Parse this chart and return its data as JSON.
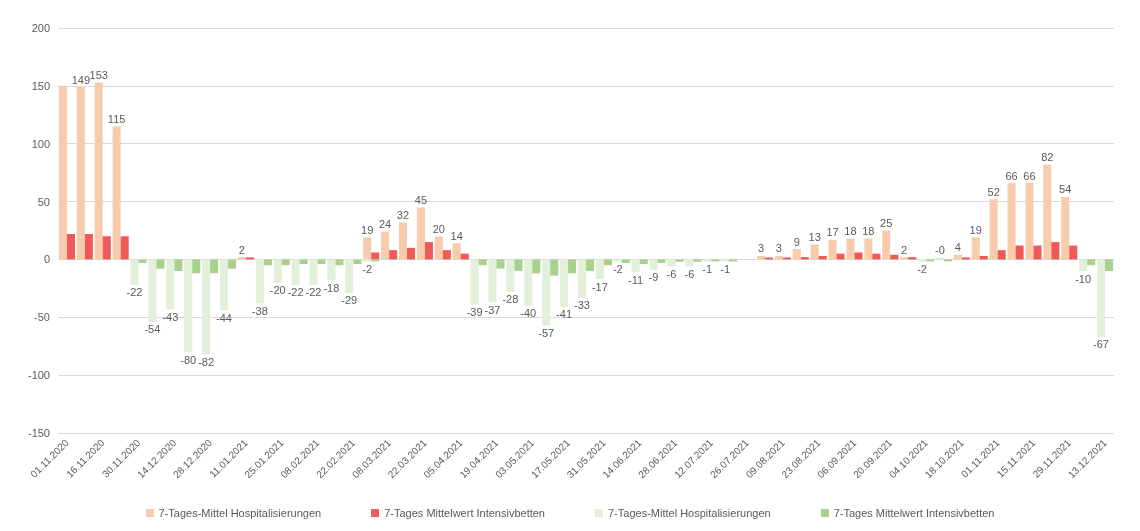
{
  "chart_data": {
    "type": "bar",
    "categories": [
      "01.11.2020",
      null,
      "16.11.2020",
      null,
      "30.11.2020",
      null,
      "14.12.2020",
      null,
      "28.12.2020",
      null,
      "11.01.2021",
      null,
      "25.01.2021",
      null,
      "08.02.2021",
      null,
      "22.02.2021",
      null,
      "08.03.2021",
      null,
      "22.03.2021",
      null,
      "05.04.2021",
      null,
      "19.04.2021",
      null,
      "03.05.2021",
      null,
      "17.05.2021",
      null,
      "31.05.2021",
      null,
      "14.06.2021",
      null,
      "28.06.2021",
      null,
      "12.07.2021",
      null,
      "26.07.2021",
      null,
      "09.08.2021",
      null,
      "23.08.2021",
      null,
      "06.09.2021",
      null,
      "20.09.2021",
      null,
      "04.10.2021",
      null,
      "18.10.2021",
      null,
      "01.11.2021",
      null,
      "15.11.2021",
      null,
      "29.11.2021",
      null,
      "13.12.2021"
    ],
    "series": [
      {
        "name": "7-Tages-Mittel Hospitalisierungen",
        "color": "#f8cbad",
        "values": [
          150,
          149,
          153,
          115,
          null,
          null,
          null,
          null,
          null,
          null,
          2,
          null,
          null,
          null,
          null,
          null,
          null,
          19,
          24,
          32,
          45,
          20,
          14,
          null,
          null,
          null,
          null,
          null,
          null,
          null,
          null,
          null,
          null,
          null,
          null,
          null,
          null,
          null,
          null,
          3,
          3,
          9,
          13,
          17,
          18,
          18,
          25,
          2,
          null,
          null,
          4,
          19,
          52,
          66,
          66,
          82,
          54,
          null,
          null
        ],
        "value_labels": [
          null,
          "149",
          "153",
          "115",
          null,
          null,
          null,
          null,
          null,
          null,
          "2",
          null,
          null,
          null,
          null,
          null,
          null,
          "19",
          "24",
          "32",
          "45",
          "20",
          "14",
          null,
          null,
          null,
          null,
          null,
          null,
          null,
          null,
          null,
          null,
          null,
          null,
          null,
          null,
          null,
          null,
          "3",
          "3",
          "9",
          "13",
          "17",
          "18",
          "18",
          "25",
          "2",
          null,
          null,
          "4",
          "19",
          "52",
          "66",
          "66",
          "82",
          "54",
          null,
          null
        ]
      },
      {
        "name": "7-Tages Mittelwert Intensivbetten",
        "color": "#ee5a5a",
        "values": [
          22,
          22,
          20,
          20,
          null,
          null,
          null,
          null,
          null,
          null,
          1,
          null,
          null,
          null,
          null,
          null,
          null,
          6,
          8,
          10,
          15,
          8,
          5,
          null,
          null,
          null,
          null,
          null,
          null,
          null,
          null,
          null,
          null,
          null,
          null,
          null,
          null,
          null,
          null,
          1,
          1,
          2,
          3,
          5,
          6,
          5,
          4,
          2,
          null,
          null,
          1,
          3,
          8,
          12,
          12,
          15,
          12,
          null,
          null
        ]
      },
      {
        "name": "7-Tages-Mittel Hospitalisierungen",
        "color": "#e2efd9",
        "values": [
          null,
          null,
          null,
          null,
          -22,
          -54,
          -43,
          -80,
          -82,
          -44,
          null,
          -38,
          -20,
          -22,
          -22,
          -18,
          -29,
          -2,
          null,
          null,
          null,
          null,
          null,
          -39,
          -37,
          -28,
          -40,
          -57,
          -41,
          -33,
          -17,
          -2,
          -11,
          -9,
          -6,
          -6,
          -1,
          -1,
          null,
          null,
          null,
          null,
          null,
          null,
          null,
          null,
          null,
          null,
          -2,
          0,
          null,
          null,
          null,
          null,
          null,
          null,
          null,
          -10,
          -67
        ],
        "value_labels": [
          null,
          null,
          null,
          null,
          "-22",
          "-54",
          "-43",
          "-80",
          "-82",
          "-44",
          null,
          "-38",
          "-20",
          "-22",
          "-22",
          "-18",
          "-29",
          "-2",
          null,
          null,
          null,
          null,
          null,
          "-39",
          "-37",
          "-28",
          "-40",
          "-57",
          "-41",
          "-33",
          "-17",
          "-2",
          "-11",
          "-9",
          "-6",
          "-6",
          "-1",
          "-1",
          null,
          null,
          null,
          null,
          null,
          null,
          null,
          null,
          null,
          null,
          "-2",
          "-0",
          null,
          null,
          null,
          null,
          null,
          null,
          null,
          "-10",
          "-67"
        ]
      },
      {
        "name": "7-Tages Mittelwert Intensivbetten",
        "color": "#a9d18e",
        "values": [
          null,
          null,
          null,
          null,
          -3,
          -8,
          -10,
          -12,
          -12,
          -8,
          null,
          -5,
          -5,
          -4,
          -4,
          -5,
          -4,
          -1,
          null,
          null,
          null,
          null,
          null,
          -5,
          -8,
          -10,
          -12,
          -14,
          -12,
          -10,
          -5,
          -3,
          -4,
          -3,
          -2,
          -2,
          -1,
          -1,
          null,
          null,
          null,
          null,
          null,
          null,
          null,
          null,
          null,
          null,
          -1,
          -1,
          null,
          null,
          null,
          null,
          null,
          null,
          null,
          -5,
          -10
        ]
      }
    ],
    "ylim": [
      -150,
      200
    ],
    "yticks": [
      -150,
      -100,
      -50,
      0,
      50,
      100,
      150,
      200
    ],
    "grid": "y",
    "legend": "bottom"
  }
}
